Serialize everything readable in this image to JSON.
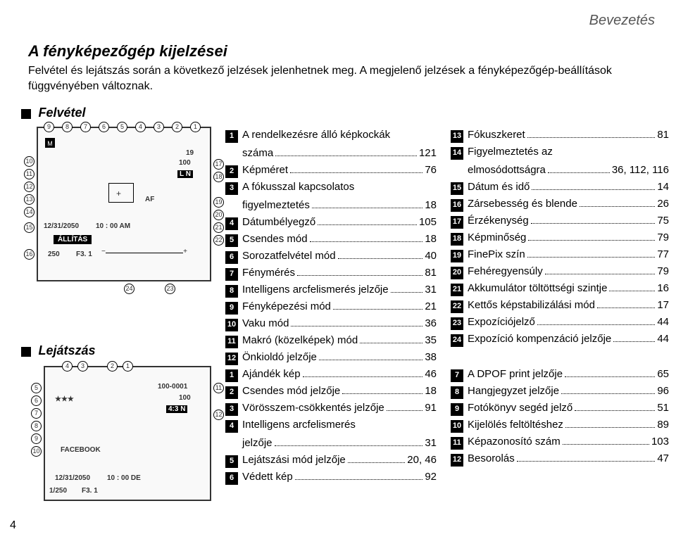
{
  "header": {
    "breadcrumb": "Bevezetés"
  },
  "title": "A fényképezőgép kijelzései",
  "subtitle": "Felvétel és lejátszás során a következő jelzések jelenhetnek meg. A megjelenő jelzések a fényképezőgép-beállítások függvényében változnak.",
  "section1": {
    "label": "Felvétel"
  },
  "section2": {
    "label": "Lejátszás"
  },
  "diagram1": {
    "date": "12/31/2050",
    "time": "10 : 00 AM",
    "setting": "ÁLLÍTÁS",
    "shutter": "250",
    "fnum": "F3. 1",
    "af": "AF",
    "callouts_top": [
      "9",
      "8",
      "7",
      "6",
      "5",
      "4",
      "3",
      "2",
      "1"
    ],
    "callouts_left": [
      "10",
      "11",
      "12",
      "13",
      "14",
      "15",
      "16"
    ],
    "callouts_right": [
      "17",
      "18",
      "19",
      "20",
      "21",
      "22"
    ],
    "callouts_bottom": [
      "24",
      "23"
    ]
  },
  "diagram2": {
    "date": "12/31/2050",
    "time": "10 : 00 DE",
    "shutter": "1/250",
    "fnum": "F3. 1",
    "img_id": "100-0001",
    "ratio": "4:3 N",
    "fb": "FACEBOOK",
    "callouts_top": [
      "4",
      "3",
      "2",
      "1"
    ],
    "callouts_left": [
      "5",
      "6",
      "7",
      "8",
      "9",
      "10"
    ],
    "callouts_right": [
      "11",
      "12"
    ]
  },
  "listA1": [
    {
      "n": "1",
      "t": "A rendelkezésre álló képkockák",
      "t2": "száma",
      "p": "121"
    },
    {
      "n": "2",
      "t": "Képméret",
      "p": "76"
    },
    {
      "n": "3",
      "t": "A fókusszal kapcsolatos",
      "t2": "figyelmeztetés",
      "p": "18"
    },
    {
      "n": "4",
      "t": "Dátumbélyegző",
      "p": "105"
    },
    {
      "n": "5",
      "t": "Csendes mód",
      "p": "18"
    },
    {
      "n": "6",
      "t": "Sorozatfelvétel mód",
      "p": "40"
    },
    {
      "n": "7",
      "t": "Fénymérés",
      "p": "81"
    },
    {
      "n": "8",
      "t": "Intelligens arcfelismerés jelzője",
      "p": "31"
    },
    {
      "n": "9",
      "t": "Fényképezési mód",
      "p": "21"
    },
    {
      "n": "10",
      "t": "Vaku mód",
      "p": "36"
    },
    {
      "n": "11",
      "t": "Makró (közelképek) mód",
      "p": "35"
    },
    {
      "n": "12",
      "t": "Önkioldó jelzője",
      "p": "38"
    }
  ],
  "listA2": [
    {
      "n": "13",
      "t": "Fókuszkeret",
      "p": "81"
    },
    {
      "n": "14",
      "t": "Figyelmeztetés az",
      "t2": "elmosódottságra",
      "p": "36, 112, 116"
    },
    {
      "n": "15",
      "t": "Dátum és idő",
      "p": "14"
    },
    {
      "n": "16",
      "t": "Zársebesség és blende",
      "p": "26"
    },
    {
      "n": "17",
      "t": "Érzékenység",
      "p": "75"
    },
    {
      "n": "18",
      "t": "Képminőség",
      "p": "79"
    },
    {
      "n": "19",
      "t": "FinePix szín",
      "p": "77"
    },
    {
      "n": "20",
      "t": "Fehéregyensúly",
      "p": "79"
    },
    {
      "n": "21",
      "t": "Akkumulátor töltöttségi szintje",
      "p": "16"
    },
    {
      "n": "22",
      "t": "Kettős képstabilizálási mód",
      "p": "17"
    },
    {
      "n": "23",
      "t": "Expozíciójelző",
      "p": "44"
    },
    {
      "n": "24",
      "t": "Expozíció kompenzáció jelzője",
      "p": "44"
    }
  ],
  "listB1": [
    {
      "n": "1",
      "t": "Ajándék kép",
      "p": "46"
    },
    {
      "n": "2",
      "t": "Csendes mód jelzője",
      "p": "18"
    },
    {
      "n": "3",
      "t": "Vörösszem-csökkentés jelzője",
      "p": "91"
    },
    {
      "n": "4",
      "t": "Intelligens arcfelismerés",
      "t2": "jelzője",
      "p": "31"
    },
    {
      "n": "5",
      "t": "Lejátszási mód jelzője",
      "p": "20, 46"
    },
    {
      "n": "6",
      "t": "Védett kép",
      "p": "92"
    }
  ],
  "listB2": [
    {
      "n": "7",
      "t": "A DPOF print jelzője",
      "p": "65"
    },
    {
      "n": "8",
      "t": "Hangjegyzet jelzője",
      "p": "96"
    },
    {
      "n": "9",
      "t": "Fotókönyv segéd jelző",
      "p": "51"
    },
    {
      "n": "10",
      "t": "Kijelölés feltöltéshez",
      "p": "89"
    },
    {
      "n": "11",
      "t": "Képazonosító szám",
      "p": "103"
    },
    {
      "n": "12",
      "t": "Besorolás",
      "p": "47"
    }
  ],
  "pageNumber": "4"
}
